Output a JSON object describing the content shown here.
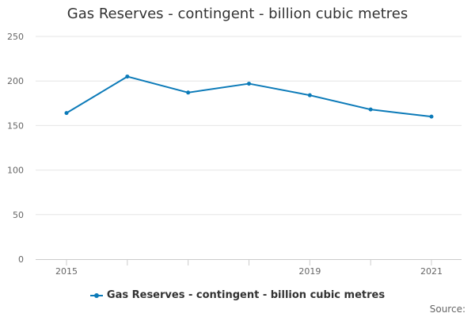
{
  "colors": {
    "series": "#0B7AB8",
    "grid": "#e6e6e6",
    "axis": "#cccccc"
  },
  "legend": {
    "label": "Gas Reserves - contingent - billion cubic metres"
  },
  "source": {
    "label": "Source:"
  },
  "chart_data": {
    "type": "line",
    "title": "Gas Reserves - contingent - billion cubic metres",
    "xlabel": "",
    "ylabel": "",
    "x": [
      2015,
      2016,
      2017,
      2018,
      2019,
      2020,
      2021
    ],
    "x_tick_labels": [
      "2015",
      "",
      "",
      "",
      "2019",
      "",
      "2021"
    ],
    "y_ticks": [
      0,
      50,
      100,
      150,
      200,
      250
    ],
    "ylim": [
      0,
      250
    ],
    "grid": true,
    "legend_position": "bottom",
    "series": [
      {
        "name": "Gas Reserves - contingent - billion cubic metres",
        "values": [
          164,
          205,
          187,
          197,
          184,
          168,
          160
        ]
      }
    ]
  }
}
